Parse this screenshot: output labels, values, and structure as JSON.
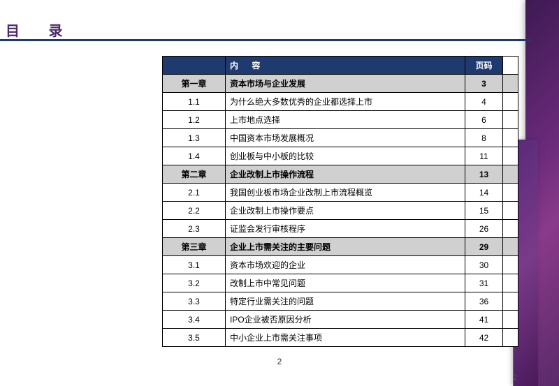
{
  "title": "目 录",
  "header": {
    "content": "内 容",
    "page": "页码"
  },
  "rows": [
    {
      "kind": "chapter",
      "num": "第一章",
      "title": "资本市场与企业发展",
      "page": "3"
    },
    {
      "kind": "item",
      "num": "1.1",
      "title": "为什么绝大多数优秀的企业都选择上市",
      "page": "4"
    },
    {
      "kind": "item",
      "num": "1.2",
      "title": "上市地点选择",
      "page": "6"
    },
    {
      "kind": "item",
      "num": "1.3",
      "title": "中国资本市场发展概况",
      "page": "8"
    },
    {
      "kind": "item",
      "num": "1.4",
      "title": "创业板与中小板的比较",
      "page": "11"
    },
    {
      "kind": "chapter",
      "num": "第二章",
      "title": "企业改制上市操作流程",
      "page": "13"
    },
    {
      "kind": "item",
      "num": "2.1",
      "title": "我国创业板市场企业改制上市流程概览",
      "page": "14"
    },
    {
      "kind": "item",
      "num": "2.2",
      "title": "企业改制上市操作要点",
      "page": "15"
    },
    {
      "kind": "item",
      "num": "2.3",
      "title": "证监会发行审核程序",
      "page": "26"
    },
    {
      "kind": "chapter",
      "num": "第三章",
      "title": "企业上市需关注的主要问题",
      "page": "29"
    },
    {
      "kind": "item",
      "num": "3.1",
      "title": "资本市场欢迎的企业",
      "page": "30"
    },
    {
      "kind": "item",
      "num": "3.2",
      "title": "改制上市中常见问题",
      "page": "31"
    },
    {
      "kind": "item",
      "num": "3.3",
      "title": "特定行业需关注的问题",
      "page": "36"
    },
    {
      "kind": "item",
      "num": "3.4",
      "title": "IPO企业被否原因分析",
      "page": "41"
    },
    {
      "kind": "item",
      "num": "3.5",
      "title": "中小企业上市需关注事项",
      "page": "42"
    }
  ],
  "page_number": "2",
  "colors": {
    "header_bg": "#1f3a6e",
    "chapter_bg": "#d0d0d0",
    "title_color": "#4a2a6a"
  }
}
